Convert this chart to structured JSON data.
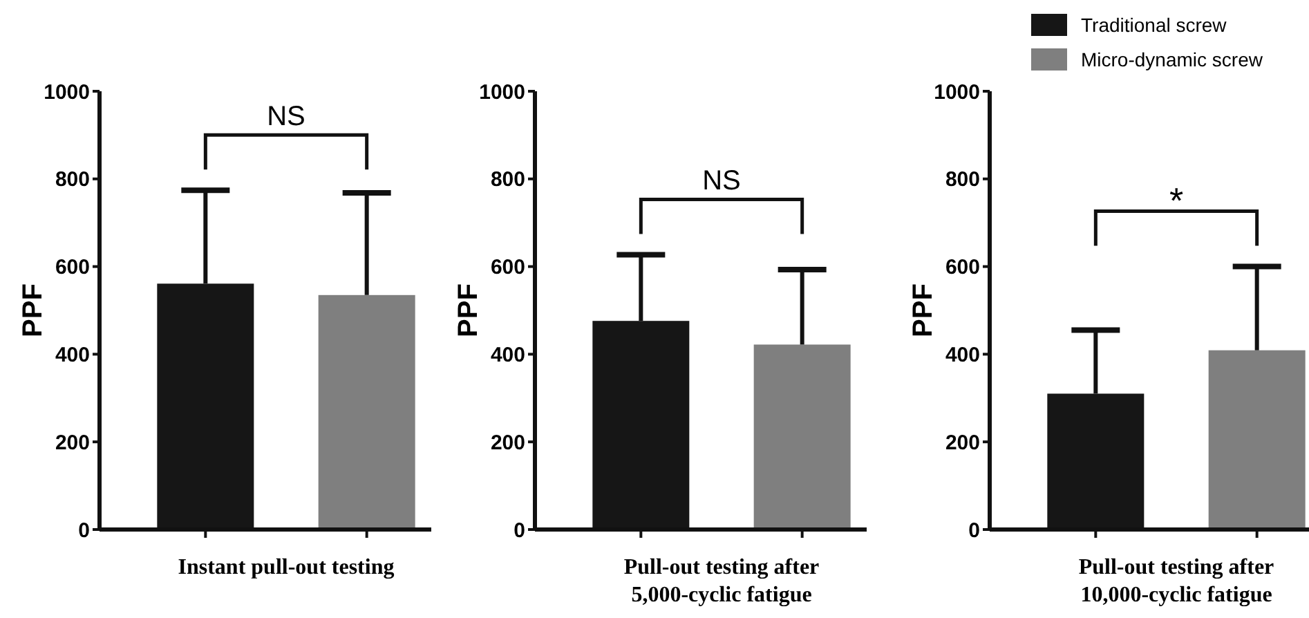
{
  "chart_data": [
    {
      "type": "bar",
      "xlabel": "Instant pull-out testing",
      "ylabel": "PPF",
      "categories": [
        null,
        null
      ],
      "ylim": [
        0,
        1000
      ],
      "yticks": [
        0,
        200,
        400,
        600,
        800,
        1000
      ],
      "grid": false,
      "legend": false,
      "annotations": [
        "NS"
      ],
      "series": [
        {
          "color": "#161616",
          "values": [
            561,
            null
          ],
          "errors": [
            [
              561,
              774
            ],
            null
          ]
        },
        {
          "color": "#7f7f7f",
          "values": [
            null,
            535
          ],
          "errors": [
            null,
            [
              535,
              768
            ]
          ]
        }
      ]
    },
    {
      "type": "bar",
      "xlabel": "Pull-out testing after 5,000-cyclic fatigue",
      "ylabel": "PPF",
      "categories": [
        null,
        null
      ],
      "ylim": [
        0,
        1000
      ],
      "yticks": [
        0,
        200,
        400,
        600,
        800,
        1000
      ],
      "grid": false,
      "legend": false,
      "annotations": [
        "NS"
      ],
      "series": [
        {
          "color": "#161616",
          "values": [
            476,
            null
          ],
          "errors": [
            [
              476,
              627
            ],
            null
          ]
        },
        {
          "color": "#7f7f7f",
          "values": [
            null,
            422
          ],
          "errors": [
            null,
            [
              422,
              593
            ]
          ]
        }
      ]
    },
    {
      "type": "bar",
      "xlabel": "Pull-out testing after 10,000-cyclic fatigue",
      "ylabel": "PPF",
      "categories": [
        null,
        null
      ],
      "ylim": [
        0,
        1000
      ],
      "yticks": [
        0,
        200,
        400,
        600,
        800,
        1000
      ],
      "grid": false,
      "legend": "top right",
      "annotations": [
        "*"
      ],
      "series": [
        {
          "name": "Traditional screw",
          "color": "#161616",
          "values": [
            310,
            null
          ],
          "errors": [
            [
              310,
              455
            ],
            null
          ]
        },
        {
          "name": "Micro-dynamic screw",
          "color": "#7f7f7f",
          "values": [
            null,
            409
          ],
          "errors": [
            null,
            [
              409,
              600
            ]
          ]
        }
      ]
    }
  ]
}
